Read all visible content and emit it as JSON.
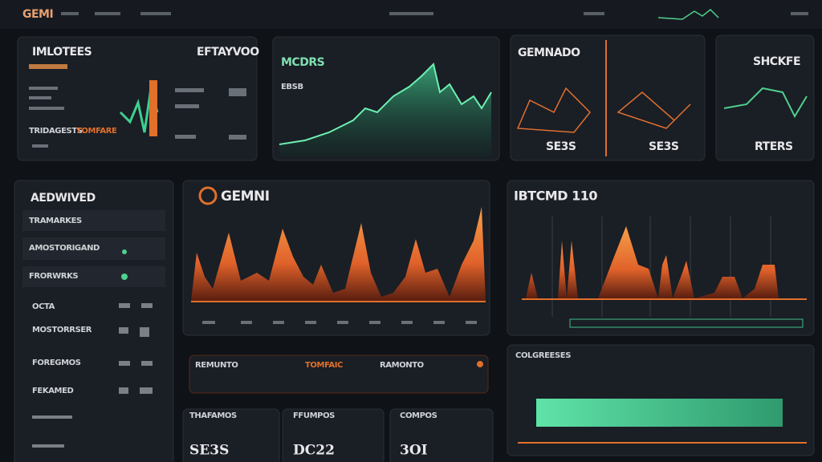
{
  "header": {
    "logo": "GEMI"
  },
  "panels": {
    "a": {
      "title": "IMLOTEES",
      "aside": "EFTAYVOO",
      "note": "TRIDAGESTS",
      "sub": "TOMFARE"
    },
    "b": {
      "title": "MCDRS",
      "sub": "EBSB"
    },
    "c": {
      "title": "GEMNADO",
      "values": [
        "SE3S",
        "SE3S"
      ]
    },
    "d": {
      "title": "SHCKFE",
      "value": "RTERS"
    },
    "sidebar": {
      "title": "AEDWIVED",
      "items": [
        "TRAMARKES",
        "AMOSTORIGAND",
        "FRORWRKS",
        "OCTA",
        "MOSTORRSER",
        "FOREGMOS",
        "FEKAMED"
      ]
    },
    "main": {
      "title": "GEMNI"
    },
    "strip": {
      "items": [
        "REMUNTO",
        "TOMFAIC",
        "RAMONTO"
      ]
    },
    "cards": [
      {
        "title": "THAFAMOS",
        "value": "SE3S"
      },
      {
        "title": "FFUMPOS",
        "value": "DC22"
      },
      {
        "title": "COMPOS",
        "value": "3OI"
      }
    ],
    "right": {
      "title": "IBTCMD 110"
    },
    "bottom": {
      "title": "COLGREESES"
    }
  }
}
